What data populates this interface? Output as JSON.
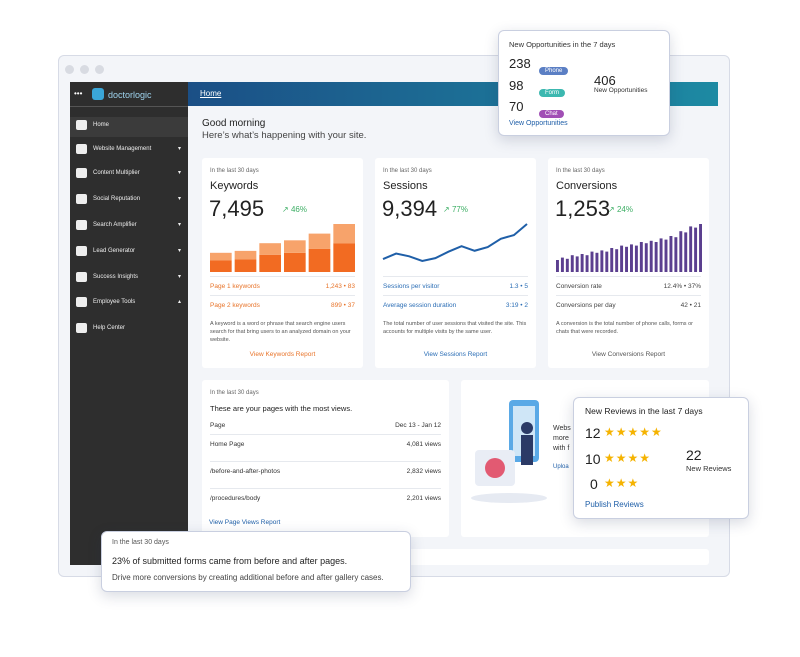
{
  "sidebar": {
    "brand": "doctorlogic",
    "menu": [
      "Home",
      "Website Management",
      "Content Multiplier",
      "Social Reputation",
      "Search Amplifier",
      "Lead Generator",
      "Success Insights",
      "Employee Tools",
      "Help Center"
    ]
  },
  "topbar": {
    "breadcrumb": "Home"
  },
  "greeting": {
    "title": "Good morning",
    "subtitle": "Here’s what’s happening with your site."
  },
  "cards": [
    {
      "period": "In the last 30 days",
      "title": "Keywords",
      "value": "7,495",
      "change": "46%",
      "rows": [
        [
          "Page 1 keywords",
          "1,243 • 83"
        ],
        [
          "Page 2 keywords",
          "899 • 37"
        ]
      ],
      "description": "A keyword is a word or phrase that search engine users search for that bring users to an analyzed domain on your website.",
      "link": "View Keywords Report",
      "spark": {
        "type": "stacked-bar",
        "bottom": [
          12,
          13,
          18,
          20,
          24,
          30
        ],
        "top": [
          8,
          9,
          12,
          13,
          16,
          20
        ]
      }
    },
    {
      "period": "In the last 30 days",
      "title": "Sessions",
      "value": "9,394",
      "change": "77%",
      "rows": [
        [
          "Sessions per visitor",
          "1.3 • 5"
        ],
        [
          "Average session duration",
          "3:19 • 2"
        ]
      ],
      "description": "The total number of user sessions that visited the site. This accounts for multiple visits by the same user.",
      "link": "View Sessions Report",
      "spark": {
        "type": "line",
        "values": [
          14,
          20,
          17,
          12,
          15,
          22,
          28,
          23,
          27,
          36,
          40,
          52
        ]
      }
    },
    {
      "period": "In the last 30 days",
      "title": "Conversions",
      "value": "1,253",
      "change": "24%",
      "rows": [
        [
          "Conversion rate",
          "12.4% • 37%"
        ],
        [
          "Conversions per day",
          "42 • 21"
        ]
      ],
      "description": "A conversion is the total number of phone calls, forms or chats that were recorded.",
      "link": "View Conversions Report",
      "spark": {
        "type": "bar",
        "values": [
          10,
          12,
          11,
          14,
          13,
          15,
          14,
          17,
          16,
          18,
          17,
          20,
          19,
          22,
          21,
          23,
          22,
          25,
          24,
          26,
          25,
          28,
          27,
          30,
          29,
          34,
          33,
          38,
          37,
          40
        ]
      }
    }
  ],
  "pages": {
    "period": "In the last 30 days",
    "title": "These are your pages with the most views.",
    "header": [
      "Page",
      "Dec 13 - Jan 12"
    ],
    "rows": [
      [
        "Home Page",
        "4,081 views"
      ],
      [
        "/before-and-after-photos",
        "2,832 views"
      ],
      [
        "/procedures/body",
        "2,201 views"
      ]
    ],
    "link": "View Page Views Report"
  },
  "hidden_card": {
    "lines": [
      "Webs",
      "more",
      "with f"
    ],
    "link": "Uploa"
  },
  "opportunities": {
    "title": "New Opportunities in the 7 days",
    "rows": [
      [
        "238",
        "Phone"
      ],
      [
        "98",
        "Form"
      ],
      [
        "70",
        "Chat"
      ]
    ],
    "total": "406",
    "total_label": "New Opportunities",
    "link": "View Opportunities"
  },
  "reviews": {
    "title": "New Reviews in the last 7 days",
    "rows": [
      "12",
      "10",
      "0"
    ],
    "total": "22",
    "total_label": "New Reviews",
    "link": "Publish Reviews"
  },
  "forms": {
    "period": "In the last 30 days",
    "headline": "23% of submitted forms came from before and after pages.",
    "text": "Drive more conversions by creating additional before and after gallery cases."
  }
}
